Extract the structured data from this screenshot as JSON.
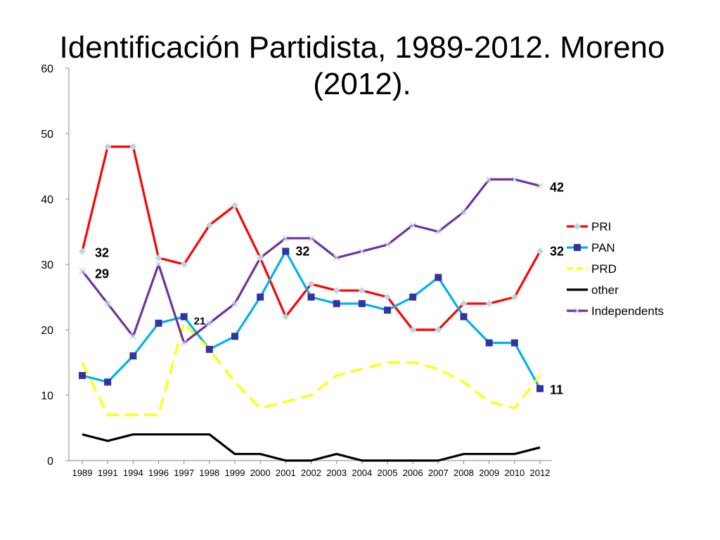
{
  "slide": {
    "title": "Identificación Partidista, 1989-2012. Moreno (2012)."
  },
  "chart_data": {
    "type": "line",
    "title": "Identificación Partidista, 1989-2012. Moreno (2012).",
    "xlabel": "",
    "ylabel": "",
    "categories": [
      "1989",
      "1991",
      "1994",
      "1996",
      "1997",
      "1998",
      "1999",
      "2000",
      "2001",
      "2002",
      "2003",
      "2004",
      "2005",
      "2006",
      "2007",
      "2008",
      "2009",
      "2010",
      "2012"
    ],
    "ylim": [
      0,
      60
    ],
    "yticks": [
      0,
      10,
      20,
      30,
      40,
      50,
      60
    ],
    "grid": false,
    "legend_position": "right",
    "series": [
      {
        "name": "PRI",
        "color": "#ff0000",
        "marker": "diamond",
        "marker_color": "#b9d7e3",
        "values": [
          32,
          48,
          48,
          31,
          30,
          36,
          39,
          31,
          22,
          27,
          26,
          26,
          25,
          20,
          20,
          24,
          24,
          25,
          32
        ]
      },
      {
        "name": "PAN",
        "color": "#00b0f0",
        "marker": "square",
        "marker_color": "#3333a0",
        "values": [
          13,
          12,
          16,
          21,
          22,
          17,
          19,
          25,
          32,
          25,
          24,
          24,
          23,
          25,
          28,
          22,
          18,
          18,
          11
        ]
      },
      {
        "name": "PRD",
        "color": "#ffff00",
        "dash": true,
        "values": [
          15,
          7,
          7,
          7,
          21,
          17,
          12,
          8,
          9,
          10,
          13,
          14,
          15,
          15,
          14,
          12,
          9,
          8,
          13
        ]
      },
      {
        "name": "other",
        "color": "#000000",
        "values": [
          4,
          3,
          4,
          4,
          4,
          4,
          1,
          1,
          0,
          0,
          1,
          0,
          0,
          0,
          0,
          1,
          1,
          1,
          2
        ]
      },
      {
        "name": "Independents",
        "color": "#7030a0",
        "marker": "x",
        "marker_color": "#b9d7e3",
        "values": [
          29,
          24,
          19,
          30,
          18,
          21,
          24,
          31,
          34,
          34,
          31,
          32,
          33,
          36,
          35,
          38,
          43,
          43,
          42
        ]
      }
    ],
    "annotations": [
      {
        "text": "32",
        "series": "PRI",
        "index": 0
      },
      {
        "text": "29",
        "series": "Independents",
        "index": 0
      },
      {
        "text": "21",
        "series": "PRD",
        "index": 4
      },
      {
        "text": "32",
        "series": "PAN",
        "index": 8
      },
      {
        "text": "42",
        "series": "Independents",
        "index": 18
      },
      {
        "text": "32",
        "series": "PRI",
        "index": 18
      },
      {
        "text": "11",
        "series": "PAN",
        "index": 18
      }
    ]
  }
}
